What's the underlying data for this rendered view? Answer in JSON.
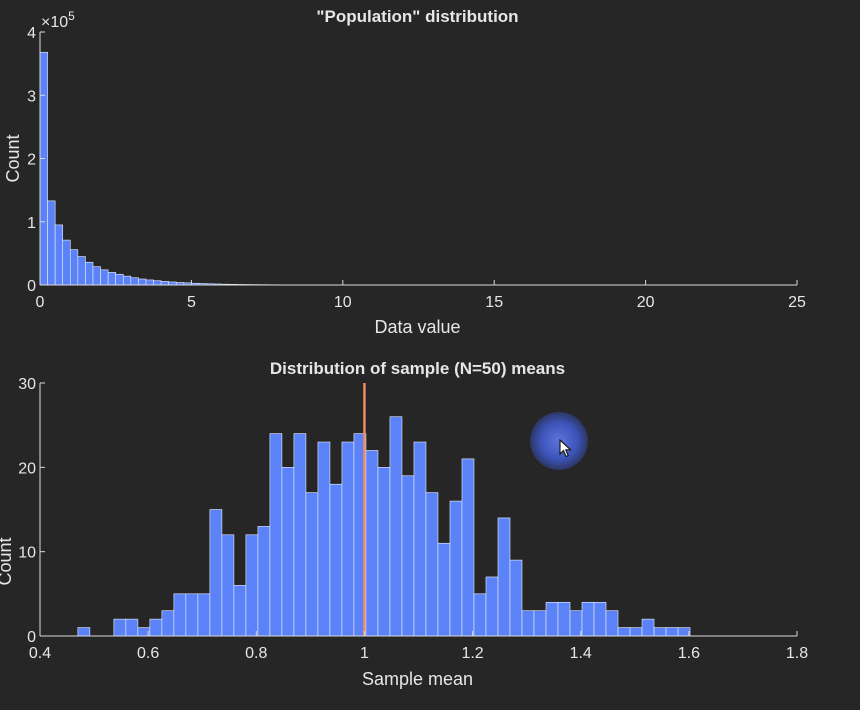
{
  "chart_data": [
    {
      "type": "bar",
      "title": "\"Population\" distribution",
      "xlabel": "Data value",
      "ylabel": "Count",
      "xlim": [
        0,
        25
      ],
      "ylim": [
        0,
        400000
      ],
      "y_multiplier_label": "×10",
      "y_multiplier_exponent": "5",
      "xticks": [
        "0",
        "5",
        "10",
        "15",
        "20",
        "25"
      ],
      "yticks": [
        "0",
        "1",
        "2",
        "3",
        "4"
      ],
      "ytick_values": [
        0,
        100000,
        200000,
        300000,
        400000
      ],
      "xtick_values": [
        0,
        5,
        10,
        15,
        20,
        25
      ],
      "bin_start": 0,
      "bin_width": 0.25,
      "values": [
        368000,
        133000,
        95000,
        71000,
        56000,
        45000,
        36000,
        29000,
        24000,
        20000,
        17000,
        14000,
        11500,
        9500,
        8000,
        6800,
        5700,
        4800,
        4000,
        3400,
        2800,
        2300,
        1900,
        1600,
        1300,
        1100,
        900,
        760,
        640,
        540,
        450,
        380,
        320,
        270,
        230,
        190,
        160,
        130,
        110,
        90
      ],
      "bar_color": "#5b83f7",
      "grid": false
    },
    {
      "type": "bar",
      "title": "Distribution of sample (N=50) means",
      "xlabel": "Sample mean",
      "ylabel": "Count",
      "xlim": [
        0.4,
        1.8
      ],
      "ylim": [
        0,
        30
      ],
      "xticks": [
        "0.4",
        "0.6",
        "0.8",
        "1",
        "1.2",
        "1.4",
        "1.6",
        "1.8"
      ],
      "xtick_values": [
        0.4,
        0.6,
        0.8,
        1.0,
        1.2,
        1.4,
        1.6,
        1.8
      ],
      "yticks": [
        "0",
        "10",
        "20",
        "30"
      ],
      "ytick_values": [
        0,
        10,
        20,
        30
      ],
      "bin_start": 0.47,
      "bin_width": 0.0222,
      "values": [
        1,
        0,
        0,
        2,
        2,
        1,
        2,
        3,
        5,
        5,
        5,
        15,
        12,
        6,
        12,
        13,
        24,
        20,
        24,
        17,
        23,
        18,
        23,
        24,
        22,
        20,
        26,
        19,
        23,
        17,
        11,
        16,
        21,
        5,
        7,
        14,
        9,
        3,
        3,
        4,
        4,
        3,
        4,
        4,
        3,
        1,
        1,
        2,
        1,
        1,
        1
      ],
      "bar_color": "#5b83f7",
      "reference_line_x": 1.0,
      "reference_line_color": "#f08b63",
      "grid": false
    }
  ],
  "colors": {
    "background": "#262626",
    "axis": "#d9d9d9",
    "text": "#e6e6e6",
    "bar_edge": "#e8eeff"
  }
}
